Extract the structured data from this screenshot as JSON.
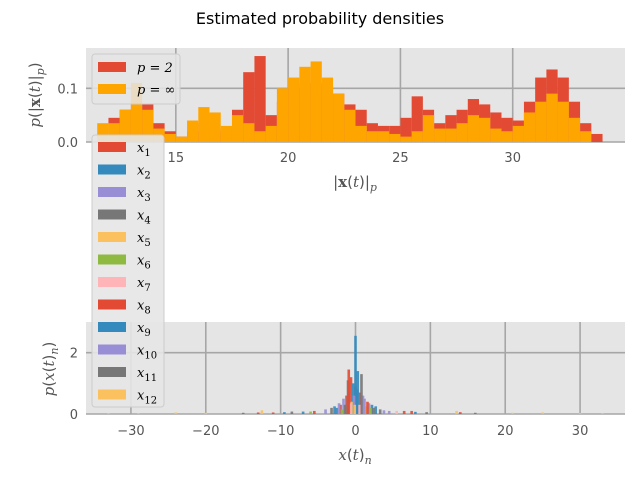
{
  "figure": {
    "title": "Estimated probability densities"
  },
  "chart_data": [
    {
      "type": "bar",
      "panel": "top",
      "xlabel": "|x(t)|_p",
      "ylabel": "p(|x(t)|_p)",
      "xlim": [
        11.0,
        35.0
      ],
      "ylim": [
        0.0,
        0.175
      ],
      "xticks": [
        15,
        20,
        25,
        30
      ],
      "yticks": [
        0.0,
        0.1
      ],
      "xtick_labels": [
        "15",
        "20",
        "25",
        "30"
      ],
      "ytick_labels": [
        "0.0",
        "0.1"
      ],
      "grid": true,
      "legend": {
        "placement": "top-left",
        "entries": [
          {
            "label": "p = 2",
            "color": "#E24A33"
          },
          {
            "label": "p = ∞",
            "color": "#FFA500"
          }
        ]
      },
      "series": [
        {
          "name": "p = 2",
          "color": "#E24A33",
          "bin_centers": [
            12.25,
            12.75,
            13.25,
            13.75,
            14.25,
            14.75,
            15.25,
            15.75,
            16.25,
            16.75,
            17.25,
            17.75,
            18.25,
            18.75,
            19.25,
            19.75,
            20.25,
            20.75,
            21.25,
            21.75,
            22.25,
            22.75,
            23.25,
            23.75,
            24.25,
            24.75,
            25.25,
            25.75,
            26.25,
            26.75,
            27.25,
            27.75,
            28.25,
            28.75,
            29.25,
            29.75,
            30.25,
            30.75,
            31.25,
            31.75,
            32.25,
            32.75,
            33.25,
            33.75
          ],
          "values": [
            0.045,
            0.06,
            0.075,
            0.07,
            0.035,
            0.02,
            0.01,
            0.02,
            0.035,
            0.02,
            0.025,
            0.06,
            0.13,
            0.16,
            0.05,
            0.075,
            0.1,
            0.11,
            0.11,
            0.1,
            0.09,
            0.07,
            0.06,
            0.035,
            0.03,
            0.03,
            0.045,
            0.085,
            0.06,
            0.035,
            0.05,
            0.06,
            0.08,
            0.07,
            0.055,
            0.045,
            0.04,
            0.075,
            0.12,
            0.135,
            0.12,
            0.075,
            0.035,
            0.015
          ]
        },
        {
          "name": "p = ∞",
          "color": "#FFA500",
          "bin_centers": [
            11.75,
            12.25,
            12.75,
            13.25,
            13.75,
            14.25,
            14.75,
            15.25,
            15.75,
            16.25,
            16.75,
            17.25,
            17.75,
            18.25,
            18.75,
            19.25,
            19.75,
            20.25,
            20.75,
            21.25,
            21.75,
            22.25,
            22.75,
            23.25,
            23.75,
            24.25,
            24.75,
            25.25,
            25.75,
            26.25,
            26.75,
            27.25,
            27.75,
            28.25,
            28.75,
            29.25,
            29.75,
            30.25,
            30.75,
            31.25,
            31.75,
            32.25,
            32.75,
            33.25
          ],
          "values": [
            0.035,
            0.035,
            0.06,
            0.11,
            0.06,
            0.025,
            0.015,
            0.01,
            0.04,
            0.065,
            0.055,
            0.03,
            0.05,
            0.035,
            0.02,
            0.03,
            0.1,
            0.12,
            0.14,
            0.15,
            0.12,
            0.09,
            0.06,
            0.03,
            0.02,
            0.02,
            0.015,
            0.01,
            0.02,
            0.05,
            0.025,
            0.025,
            0.035,
            0.05,
            0.045,
            0.025,
            0.02,
            0.03,
            0.055,
            0.075,
            0.09,
            0.075,
            0.045,
            0.02
          ]
        }
      ]
    },
    {
      "type": "bar",
      "panel": "bottom",
      "xlabel": "x(t)_n",
      "ylabel": "p(x(t)_n)",
      "xlim": [
        -36.0,
        36.0
      ],
      "ylim": [
        0.0,
        3.0
      ],
      "xticks": [
        -30,
        -20,
        -10,
        0,
        10,
        20,
        30
      ],
      "yticks": [
        0,
        2
      ],
      "xtick_labels": [
        "−30",
        "−20",
        "−10",
        "0",
        "10",
        "20",
        "30"
      ],
      "ytick_labels": [
        "0",
        "2"
      ],
      "grid": true,
      "legend": {
        "placement": "left",
        "entries": [
          {
            "label": "x1",
            "color": "#E24A33"
          },
          {
            "label": "x2",
            "color": "#348ABD"
          },
          {
            "label": "x3",
            "color": "#988ED5"
          },
          {
            "label": "x4",
            "color": "#777777"
          },
          {
            "label": "x5",
            "color": "#FBC15E"
          },
          {
            "label": "x6",
            "color": "#8EBA42"
          },
          {
            "label": "x7",
            "color": "#FFB5B8"
          },
          {
            "label": "x8",
            "color": "#E24A33"
          },
          {
            "label": "x9",
            "color": "#348ABD"
          },
          {
            "label": "x10",
            "color": "#988ED5"
          },
          {
            "label": "x11",
            "color": "#777777"
          },
          {
            "label": "x12",
            "color": "#FBC15E"
          }
        ]
      },
      "series": [
        {
          "name": "x1",
          "color": "#E24A33",
          "bins": [
            [
              -1.2,
              0.6
            ],
            [
              -0.6,
              1.2
            ],
            [
              0.0,
              0.9
            ],
            [
              0.6,
              0.7
            ],
            [
              -2.0,
              0.3
            ],
            [
              7.5,
              0.1
            ],
            [
              -13,
              0.05
            ],
            [
              14,
              0.06
            ]
          ]
        },
        {
          "name": "x2",
          "color": "#348ABD",
          "bins": [
            [
              -0.3,
              1.0
            ],
            [
              0.0,
              2.55
            ],
            [
              0.3,
              1.4
            ],
            [
              -2.5,
              0.2
            ],
            [
              2.2,
              0.3
            ],
            [
              -7,
              0.08
            ],
            [
              8,
              0.07
            ]
          ]
        },
        {
          "name": "x3",
          "color": "#988ED5",
          "bins": [
            [
              -1.6,
              0.5
            ],
            [
              -0.9,
              0.7
            ],
            [
              1.0,
              0.6
            ],
            [
              1.8,
              0.35
            ],
            [
              -4,
              0.15
            ],
            [
              4.5,
              0.1
            ]
          ]
        },
        {
          "name": "x4",
          "color": "#777777",
          "bins": [
            [
              -1.0,
              1.1
            ],
            [
              0.8,
              1.3
            ],
            [
              -8.5,
              0.08
            ],
            [
              9.5,
              0.06
            ],
            [
              -3.2,
              0.2
            ],
            [
              3.3,
              0.15
            ]
          ]
        },
        {
          "name": "x5",
          "color": "#FBC15E",
          "bins": [
            [
              -0.5,
              0.4
            ],
            [
              1.4,
              0.25
            ],
            [
              -12.5,
              0.12
            ],
            [
              13.5,
              0.1
            ],
            [
              -20,
              0.04
            ],
            [
              21,
              0.04
            ],
            [
              -29,
              0.03
            ],
            [
              30,
              0.03
            ]
          ]
        },
        {
          "name": "x6",
          "color": "#8EBA42",
          "bins": [
            [
              -1.8,
              0.15
            ],
            [
              2.0,
              0.2
            ],
            [
              -6,
              0.08
            ]
          ]
        },
        {
          "name": "x7",
          "color": "#FFB5B8",
          "bins": [
            [
              -0.7,
              0.35
            ],
            [
              0.5,
              0.3
            ],
            [
              5.5,
              0.1
            ]
          ]
        },
        {
          "name": "x8",
          "color": "#E24A33",
          "bins": [
            [
              -0.9,
              1.45
            ],
            [
              1.6,
              0.4
            ],
            [
              -5.5,
              0.1
            ],
            [
              6.5,
              0.1
            ],
            [
              -11,
              0.05
            ]
          ]
        },
        {
          "name": "x9",
          "color": "#348ABD",
          "bins": [
            [
              0.2,
              0.8
            ],
            [
              -2.8,
              0.25
            ],
            [
              2.7,
              0.25
            ],
            [
              -9.5,
              0.06
            ]
          ]
        },
        {
          "name": "x10",
          "color": "#988ED5",
          "bins": [
            [
              -2.2,
              0.35
            ],
            [
              -0.2,
              0.6
            ],
            [
              1.2,
              0.5
            ],
            [
              3.8,
              0.12
            ]
          ]
        },
        {
          "name": "x11",
          "color": "#777777",
          "bins": [
            [
              -1.4,
              0.3
            ],
            [
              2.4,
              0.2
            ],
            [
              -15,
              0.04
            ],
            [
              16,
              0.04
            ]
          ]
        },
        {
          "name": "x12",
          "color": "#FBC15E",
          "bins": [
            [
              -0.1,
              0.3
            ],
            [
              -24,
              0.05
            ],
            [
              25,
              0.05
            ],
            [
              -33,
              0.03
            ],
            [
              33,
              0.03
            ]
          ]
        }
      ]
    }
  ]
}
